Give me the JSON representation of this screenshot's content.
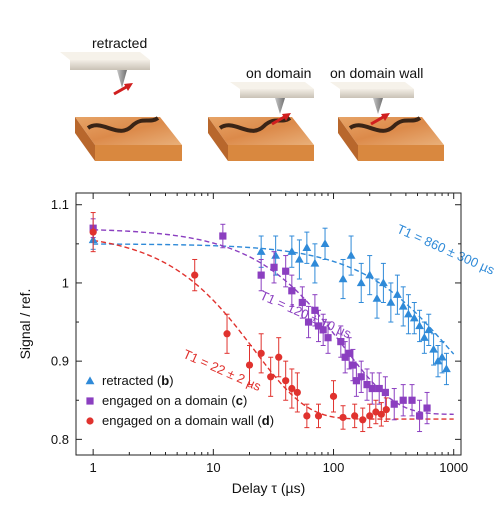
{
  "illustration": {
    "panels": [
      {
        "label": "retracted"
      },
      {
        "label": "on domain"
      },
      {
        "label": "on domain wall"
      }
    ]
  },
  "chart_data": {
    "type": "scatter",
    "xlabel": "Delay τ (µs)",
    "ylabel": "Signal / ref.",
    "xscale": "log",
    "xlim": [
      0.72,
      1150
    ],
    "ylim": [
      0.78,
      1.115
    ],
    "xticks": [
      {
        "v": 1,
        "t": "1"
      },
      {
        "v": 10,
        "t": "10"
      },
      {
        "v": 100,
        "t": "100"
      },
      {
        "v": 1000,
        "t": "1000"
      }
    ],
    "yticks": [
      {
        "v": 0.8,
        "t": "0.8"
      },
      {
        "v": 0.9,
        "t": "0.9"
      },
      {
        "v": 1.0,
        "t": "1"
      },
      {
        "v": 1.1,
        "t": "1.1"
      }
    ],
    "grid": false,
    "legend": "bottom-left",
    "series": [
      {
        "name": "retracted",
        "name_bold": "b",
        "color": "#2f8ad8",
        "marker": "triangle",
        "fit": {
          "A": 1.05,
          "B": 0.845,
          "T1": 860
        },
        "annotation": {
          "text": "T1 = 860 ± 300 µs",
          "x": 330,
          "y": 1.065
        },
        "points": [
          {
            "x": 1,
            "y": 1.055,
            "err": 0.012
          },
          {
            "x": 25,
            "y": 1.04,
            "err": 0.02
          },
          {
            "x": 33,
            "y": 1.035,
            "err": 0.025
          },
          {
            "x": 45,
            "y": 1.04,
            "err": 0.02
          },
          {
            "x": 52,
            "y": 1.03,
            "err": 0.025
          },
          {
            "x": 60,
            "y": 1.045,
            "err": 0.02
          },
          {
            "x": 70,
            "y": 1.025,
            "err": 0.025
          },
          {
            "x": 85,
            "y": 1.05,
            "err": 0.02
          },
          {
            "x": 120,
            "y": 1.005,
            "err": 0.025
          },
          {
            "x": 140,
            "y": 1.035,
            "err": 0.025
          },
          {
            "x": 170,
            "y": 1.0,
            "err": 0.025
          },
          {
            "x": 200,
            "y": 1.01,
            "err": 0.025
          },
          {
            "x": 230,
            "y": 0.98,
            "err": 0.025
          },
          {
            "x": 260,
            "y": 1.0,
            "err": 0.025
          },
          {
            "x": 300,
            "y": 0.975,
            "err": 0.025
          },
          {
            "x": 340,
            "y": 0.985,
            "err": 0.025
          },
          {
            "x": 380,
            "y": 0.97,
            "err": 0.025
          },
          {
            "x": 420,
            "y": 0.96,
            "err": 0.025
          },
          {
            "x": 470,
            "y": 0.955,
            "err": 0.02
          },
          {
            "x": 520,
            "y": 0.945,
            "err": 0.02
          },
          {
            "x": 570,
            "y": 0.93,
            "err": 0.02
          },
          {
            "x": 620,
            "y": 0.94,
            "err": 0.02
          },
          {
            "x": 680,
            "y": 0.915,
            "err": 0.02
          },
          {
            "x": 740,
            "y": 0.9,
            "err": 0.02
          },
          {
            "x": 800,
            "y": 0.905,
            "err": 0.02
          },
          {
            "x": 870,
            "y": 0.89,
            "err": 0.02
          }
        ]
      },
      {
        "name": "engaged on a domain",
        "name_bold": "c",
        "color": "#8b3fc0",
        "marker": "square",
        "fit": {
          "A": 1.07,
          "B": 0.832,
          "T1": 120
        },
        "annotation": {
          "text": "T1 = 120 ± 10 µs",
          "x": 24,
          "y": 0.98
        },
        "points": [
          {
            "x": 1,
            "y": 1.07,
            "err": 0.012
          },
          {
            "x": 12,
            "y": 1.06,
            "err": 0.015
          },
          {
            "x": 25,
            "y": 1.01,
            "err": 0.02
          },
          {
            "x": 32,
            "y": 1.02,
            "err": 0.02
          },
          {
            "x": 40,
            "y": 1.015,
            "err": 0.02
          },
          {
            "x": 45,
            "y": 0.99,
            "err": 0.02
          },
          {
            "x": 55,
            "y": 0.975,
            "err": 0.02
          },
          {
            "x": 62,
            "y": 0.95,
            "err": 0.02
          },
          {
            "x": 70,
            "y": 0.965,
            "err": 0.02
          },
          {
            "x": 75,
            "y": 0.945,
            "err": 0.02
          },
          {
            "x": 82,
            "y": 0.94,
            "err": 0.02
          },
          {
            "x": 90,
            "y": 0.93,
            "err": 0.02
          },
          {
            "x": 115,
            "y": 0.925,
            "err": 0.02
          },
          {
            "x": 125,
            "y": 0.905,
            "err": 0.02
          },
          {
            "x": 135,
            "y": 0.91,
            "err": 0.02
          },
          {
            "x": 145,
            "y": 0.895,
            "err": 0.02
          },
          {
            "x": 155,
            "y": 0.875,
            "err": 0.02
          },
          {
            "x": 170,
            "y": 0.88,
            "err": 0.02
          },
          {
            "x": 190,
            "y": 0.87,
            "err": 0.02
          },
          {
            "x": 210,
            "y": 0.865,
            "err": 0.02
          },
          {
            "x": 240,
            "y": 0.865,
            "err": 0.02
          },
          {
            "x": 270,
            "y": 0.86,
            "err": 0.02
          },
          {
            "x": 320,
            "y": 0.845,
            "err": 0.02
          },
          {
            "x": 380,
            "y": 0.85,
            "err": 0.02
          },
          {
            "x": 450,
            "y": 0.85,
            "err": 0.02
          },
          {
            "x": 520,
            "y": 0.83,
            "err": 0.02
          },
          {
            "x": 600,
            "y": 0.84,
            "err": 0.02
          }
        ]
      },
      {
        "name": "engaged on a domain wall",
        "name_bold": "d",
        "color": "#e0322e",
        "marker": "circle",
        "fit": {
          "A": 1.065,
          "B": 0.826,
          "T1": 22
        },
        "annotation": {
          "text": "T1 = 22 ± 2 µs",
          "x": 5.5,
          "y": 0.905
        },
        "points": [
          {
            "x": 1,
            "y": 1.065,
            "err": 0.025
          },
          {
            "x": 7,
            "y": 1.01,
            "err": 0.02
          },
          {
            "x": 13,
            "y": 0.935,
            "err": 0.025
          },
          {
            "x": 20,
            "y": 0.895,
            "err": 0.025
          },
          {
            "x": 25,
            "y": 0.91,
            "err": 0.025
          },
          {
            "x": 30,
            "y": 0.88,
            "err": 0.025
          },
          {
            "x": 35,
            "y": 0.905,
            "err": 0.025
          },
          {
            "x": 40,
            "y": 0.875,
            "err": 0.025
          },
          {
            "x": 45,
            "y": 0.865,
            "err": 0.025
          },
          {
            "x": 50,
            "y": 0.86,
            "err": 0.025
          },
          {
            "x": 60,
            "y": 0.83,
            "err": 0.015
          },
          {
            "x": 75,
            "y": 0.83,
            "err": 0.015
          },
          {
            "x": 100,
            "y": 0.855,
            "err": 0.02
          },
          {
            "x": 120,
            "y": 0.828,
            "err": 0.015
          },
          {
            "x": 150,
            "y": 0.83,
            "err": 0.015
          },
          {
            "x": 175,
            "y": 0.825,
            "err": 0.015
          },
          {
            "x": 200,
            "y": 0.83,
            "err": 0.015
          },
          {
            "x": 225,
            "y": 0.835,
            "err": 0.015
          },
          {
            "x": 250,
            "y": 0.832,
            "err": 0.015
          },
          {
            "x": 275,
            "y": 0.838,
            "err": 0.015
          }
        ]
      }
    ]
  }
}
